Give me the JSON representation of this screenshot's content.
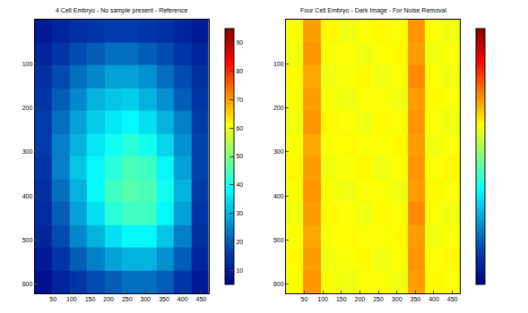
{
  "chart_data": [
    {
      "type": "heatmap",
      "title": "4 Cell Embryo - No sample present - Reference",
      "x": [
        24,
        71,
        118,
        165,
        212,
        259,
        306,
        353,
        400,
        447
      ],
      "y": [
        26,
        78,
        130,
        181,
        233,
        285,
        336,
        388,
        440,
        491,
        543,
        595
      ],
      "z": [
        [
          10,
          12,
          14,
          15,
          16,
          16,
          15,
          14,
          12,
          10
        ],
        [
          12,
          15,
          18,
          20,
          22,
          22,
          20,
          18,
          15,
          12
        ],
        [
          14,
          18,
          22,
          25,
          28,
          28,
          26,
          22,
          18,
          14
        ],
        [
          15,
          20,
          25,
          30,
          32,
          33,
          30,
          26,
          20,
          15
        ],
        [
          16,
          22,
          28,
          33,
          36,
          38,
          35,
          30,
          24,
          16
        ],
        [
          16,
          24,
          30,
          36,
          40,
          42,
          40,
          34,
          26,
          17
        ],
        [
          15,
          24,
          32,
          38,
          42,
          45,
          44,
          38,
          28,
          17
        ],
        [
          14,
          22,
          30,
          38,
          44,
          46,
          45,
          40,
          30,
          16
        ],
        [
          13,
          20,
          28,
          35,
          42,
          44,
          44,
          38,
          28,
          15
        ],
        [
          12,
          18,
          25,
          30,
          35,
          38,
          38,
          32,
          24,
          14
        ],
        [
          10,
          15,
          20,
          24,
          28,
          30,
          30,
          26,
          20,
          12
        ],
        [
          8,
          12,
          15,
          18,
          20,
          22,
          22,
          20,
          15,
          10
        ]
      ],
      "xlim": [
        0.5,
        470.5
      ],
      "ylim": [
        620.5,
        0.5
      ],
      "xticks": [
        50,
        100,
        150,
        200,
        250,
        300,
        350,
        400,
        450
      ],
      "yticks": [
        100,
        200,
        300,
        400,
        500,
        600
      ],
      "colorbar": {
        "range": [
          5,
          95
        ],
        "ticks": [
          10,
          20,
          30,
          40,
          50,
          60,
          70,
          80,
          90
        ]
      }
    },
    {
      "type": "heatmap",
      "title": "Four Cell Embryo - Dark Image - For Noise Removal",
      "x": [
        24,
        71,
        118,
        165,
        212,
        259,
        306,
        353,
        400,
        447
      ],
      "y": [
        26,
        78,
        130,
        181,
        233,
        285,
        336,
        388,
        440,
        491,
        543,
        595
      ],
      "z": [
        [
          62,
          72,
          63,
          61,
          62,
          63,
          62,
          73,
          62,
          61
        ],
        [
          61,
          73,
          62,
          62,
          61,
          62,
          63,
          72,
          61,
          62
        ],
        [
          63,
          71,
          61,
          62,
          63,
          61,
          62,
          74,
          62,
          61
        ],
        [
          62,
          72,
          62,
          61,
          62,
          62,
          61,
          72,
          63,
          62
        ],
        [
          61,
          73,
          63,
          62,
          61,
          63,
          62,
          73,
          62,
          61
        ],
        [
          62,
          71,
          62,
          63,
          62,
          62,
          63,
          72,
          61,
          62
        ],
        [
          63,
          72,
          61,
          62,
          63,
          61,
          62,
          73,
          62,
          63
        ],
        [
          62,
          73,
          62,
          61,
          62,
          62,
          61,
          72,
          63,
          62
        ],
        [
          61,
          72,
          63,
          62,
          61,
          63,
          62,
          74,
          62,
          61
        ],
        [
          62,
          71,
          62,
          63,
          62,
          62,
          63,
          72,
          61,
          62
        ],
        [
          63,
          72,
          61,
          62,
          63,
          61,
          62,
          73,
          62,
          63
        ],
        [
          62,
          73,
          62,
          61,
          62,
          62,
          61,
          72,
          63,
          62
        ]
      ],
      "xlim": [
        0.5,
        470.5
      ],
      "ylim": [
        620.5,
        0.5
      ],
      "xticks": [
        50,
        100,
        150,
        200,
        250,
        300,
        350,
        400,
        450
      ],
      "yticks": [
        100,
        200,
        300,
        400,
        500,
        600
      ],
      "colorbar": {
        "range": [
          0,
          100
        ]
      }
    }
  ]
}
